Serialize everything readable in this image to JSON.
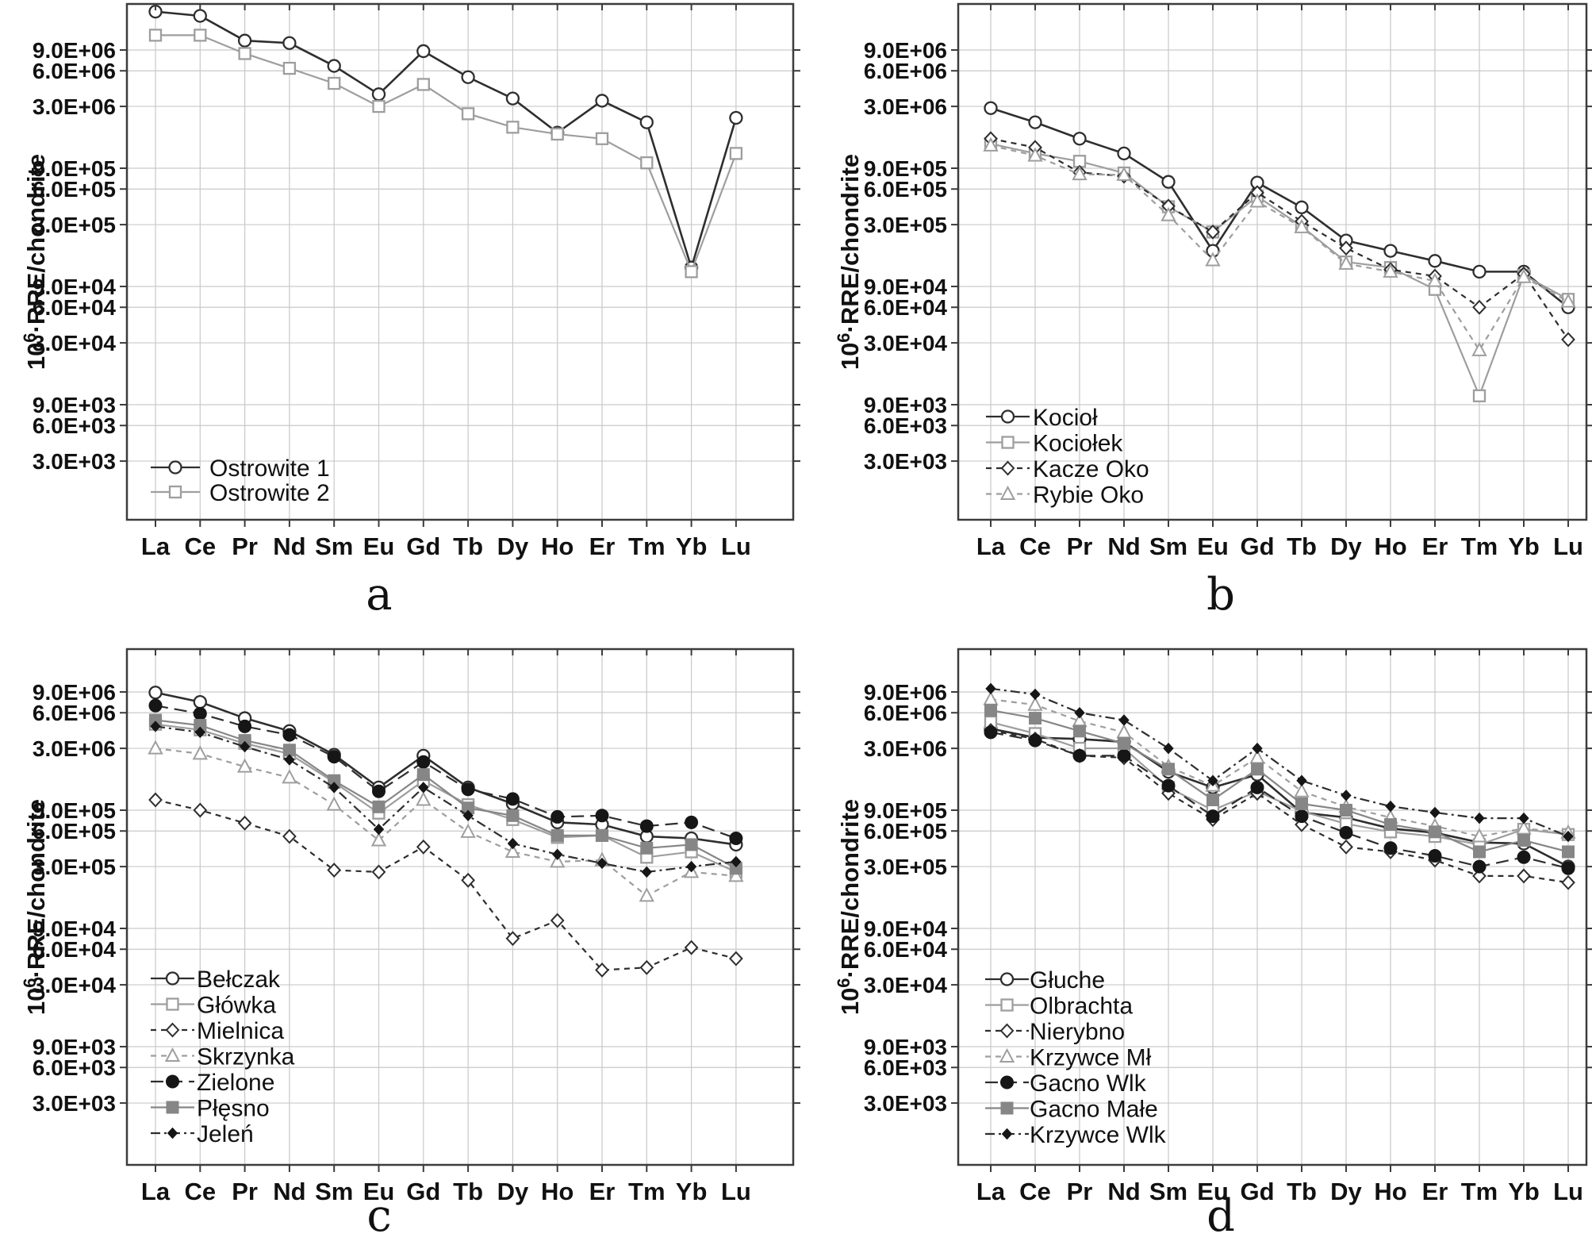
{
  "page": {
    "background": "#ffffff"
  },
  "colors": {
    "dark": "#2e2e2e",
    "gray": "#9e9e9e",
    "midgray": "#868686",
    "grid": "#c9c9c9",
    "axis_box": "#3c3c3c",
    "text": "#111111"
  },
  "axis": {
    "ylabel": "10⁶·RRE/chondrite",
    "ylabel_base": "10",
    "ylabel_sup": "6",
    "ylabel_rest": "·RRE/chondrite",
    "yticks": [
      {
        "label": "9.0E+06",
        "value": 9000000
      },
      {
        "label": "6.0E+06",
        "value": 6000000
      },
      {
        "label": "3.0E+06",
        "value": 3000000
      },
      {
        "label": "9.0E+05",
        "value": 900000
      },
      {
        "label": "6.0E+05",
        "value": 600000
      },
      {
        "label": "3.0E+05",
        "value": 300000
      },
      {
        "label": "9.0E+04",
        "value": 90000
      },
      {
        "label": "6.0E+04",
        "value": 60000
      },
      {
        "label": "3.0E+04",
        "value": 30000
      },
      {
        "label": "9.0E+03",
        "value": 9000
      },
      {
        "label": "6.0E+03",
        "value": 6000
      },
      {
        "label": "3.0E+03",
        "value": 3000
      }
    ],
    "categories": [
      "La",
      "Ce",
      "Pr",
      "Nd",
      "Sm",
      "Eu",
      "Gd",
      "Tb",
      "Dy",
      "Ho",
      "Er",
      "Tm",
      "Yb",
      "Lu"
    ]
  },
  "chart_data": [
    {
      "type": "line",
      "label": "a",
      "x": [
        "La",
        "Ce",
        "Pr",
        "Nd",
        "Sm",
        "Eu",
        "Gd",
        "Tb",
        "Dy",
        "Ho",
        "Er",
        "Tm",
        "Yb",
        "Lu"
      ],
      "ylabel": "10⁶·RRE/chondrite",
      "yscale": "log",
      "ylim": [
        1000,
        22000000
      ],
      "grid": true,
      "legend_position": "lower-left",
      "series": [
        {
          "name": "Ostrowite 1",
          "color": "dark",
          "line": "solid",
          "marker": "circle-open",
          "values": [
            19000000.0,
            17500000.0,
            10800000.0,
            10300000.0,
            6600000.0,
            3800000.0,
            8800000.0,
            5300000.0,
            3500000.0,
            1800000.0,
            3350000.0,
            2200000.0,
            130000.0,
            2400000.0
          ]
        },
        {
          "name": "Ostrowite 2",
          "color": "gray",
          "line": "solid",
          "marker": "square-open",
          "values": [
            12000000.0,
            12000000.0,
            8400000.0,
            6300000.0,
            4700000.0,
            3000000.0,
            4600000.0,
            2600000.0,
            2000000.0,
            1750000.0,
            1600000.0,
            1000000.0,
            120000.0,
            1200000.0
          ]
        }
      ]
    },
    {
      "type": "line",
      "label": "b",
      "x": [
        "La",
        "Ce",
        "Pr",
        "Nd",
        "Sm",
        "Eu",
        "Gd",
        "Tb",
        "Dy",
        "Ho",
        "Er",
        "Tm",
        "Yb",
        "Lu"
      ],
      "ylabel": "10⁶·RRE/chondrite",
      "yscale": "log",
      "ylim": [
        1000,
        22000000
      ],
      "grid": true,
      "legend_position": "lower-left",
      "series": [
        {
          "name": "Kocioł",
          "color": "dark",
          "line": "solid",
          "marker": "circle-open",
          "values": [
            2900000.0,
            2200000.0,
            1600000.0,
            1200000.0,
            690000.0,
            180000.0,
            680000.0,
            420000.0,
            220000.0,
            180000.0,
            148000.0,
            120000.0,
            120000.0,
            60000.0
          ]
        },
        {
          "name": "Kociołek",
          "color": "gray",
          "line": "solid",
          "marker": "square-open",
          "values": [
            1450000.0,
            1200000.0,
            1030000.0,
            820000.0,
            425000.0,
            260000.0,
            520000.0,
            290000.0,
            145000.0,
            130000.0,
            85000.0,
            10700.0,
            112000.0,
            70000.0
          ]
        },
        {
          "name": "Kacze Oko",
          "color": "dark",
          "line": "dash",
          "marker": "diamond-open",
          "values": [
            1600000.0,
            1350000.0,
            830000.0,
            770000.0,
            430000.0,
            260000.0,
            560000.0,
            320000.0,
            190000.0,
            125000.0,
            110000.0,
            60000.0,
            115000.0,
            32000.0
          ]
        },
        {
          "name": "Rybie Oko",
          "color": "gray",
          "line": "dash",
          "marker": "triangle-open",
          "values": [
            1400000.0,
            1150000.0,
            800000.0,
            790000.0,
            360000.0,
            150000.0,
            470000.0,
            285000.0,
            140000.0,
            120000.0,
            100000.0,
            26000.0,
            108000.0,
            67000.0
          ]
        }
      ]
    },
    {
      "type": "line",
      "label": "c",
      "x": [
        "La",
        "Ce",
        "Pr",
        "Nd",
        "Sm",
        "Eu",
        "Gd",
        "Tb",
        "Dy",
        "Ho",
        "Er",
        "Tm",
        "Yb",
        "Lu"
      ],
      "ylabel": "10⁶·RRE/chondrite",
      "yscale": "log",
      "ylim": [
        1000,
        22000000
      ],
      "grid": true,
      "legend_position": "lower-left",
      "series": [
        {
          "name": "Bełczak",
          "color": "dark",
          "line": "solid",
          "marker": "circle-open",
          "values": [
            8900000.0,
            7400000.0,
            5400000.0,
            4200000.0,
            2650000.0,
            1400000.0,
            2600000.0,
            1400000.0,
            1020000.0,
            710000.0,
            680000.0,
            540000.0,
            520000.0,
            460000.0
          ]
        },
        {
          "name": "Główka",
          "color": "gray",
          "line": "solid",
          "marker": "square-open",
          "values": [
            4800000.0,
            4300000.0,
            3300000.0,
            2700000.0,
            1550000.0,
            850000.0,
            1600000.0,
            1000000.0,
            750000.0,
            530000.0,
            550000.0,
            360000.0,
            400000.0,
            270000.0
          ]
        },
        {
          "name": "Mielnica",
          "color": "dark",
          "line": "dash",
          "marker": "diamond-open",
          "values": [
            1100000.0,
            900000.0,
            700000.0,
            540000.0,
            280000.0,
            270000.0,
            440000.0,
            230000.0,
            74000.0,
            105000.0,
            40000.0,
            42000.0,
            62000.0,
            50000.0
          ]
        },
        {
          "name": "Skrzynka",
          "color": "gray",
          "line": "dash",
          "marker": "triangle-open",
          "values": [
            3000000.0,
            2700000.0,
            2100000.0,
            1700000.0,
            1000000.0,
            500000.0,
            1100000.0,
            590000.0,
            400000.0,
            330000.0,
            340000.0,
            170000.0,
            270000.0,
            250000.0
          ]
        },
        {
          "name": "Zielone",
          "color": "dark",
          "line": "longdash",
          "marker": "circle-filled",
          "values": [
            6900000.0,
            5900000.0,
            4600000.0,
            3900000.0,
            2550000.0,
            1300000.0,
            2300000.0,
            1350000.0,
            1120000.0,
            790000.0,
            810000.0,
            660000.0,
            710000.0,
            520000.0
          ]
        },
        {
          "name": "Płęsno",
          "color": "midgray",
          "line": "solid",
          "marker": "square-filled",
          "values": [
            5200000.0,
            4700000.0,
            3500000.0,
            2900000.0,
            1600000.0,
            960000.0,
            1800000.0,
            940000.0,
            810000.0,
            550000.0,
            550000.0,
            430000.0,
            460000.0,
            290000.0
          ]
        },
        {
          "name": "Jeleń",
          "color": "dark",
          "line": "dashdot",
          "marker": "diamond-filled",
          "values": [
            4600000.0,
            4100000.0,
            3100000.0,
            2400000.0,
            1400000.0,
            620000.0,
            1400000.0,
            810000.0,
            470000.0,
            380000.0,
            320000.0,
            270000.0,
            300000.0,
            330000.0
          ]
        }
      ]
    },
    {
      "type": "line",
      "label": "d",
      "x": [
        "La",
        "Ce",
        "Pr",
        "Nd",
        "Sm",
        "Eu",
        "Gd",
        "Tb",
        "Dy",
        "Ho",
        "Er",
        "Tm",
        "Yb",
        "Lu"
      ],
      "ylabel": "10⁶·RRE/chondrite",
      "yscale": "log",
      "ylim": [
        1000,
        22000000
      ],
      "grid": true,
      "legend_position": "lower-left",
      "series": [
        {
          "name": "Głuche",
          "color": "dark",
          "line": "solid",
          "marker": "circle-open",
          "values": [
            4400000.0,
            3700000.0,
            3600000.0,
            3400000.0,
            1900000.0,
            1400000.0,
            1800000.0,
            860000.0,
            780000.0,
            630000.0,
            580000.0,
            480000.0,
            470000.0,
            300000.0
          ]
        },
        {
          "name": "Olbrachta",
          "color": "gray",
          "line": "solid",
          "marker": "square-open",
          "values": [
            5000000.0,
            4000000.0,
            3000000.0,
            3000000.0,
            1400000.0,
            900000.0,
            1300000.0,
            880000.0,
            690000.0,
            590000.0,
            540000.0,
            460000.0,
            620000.0,
            560000.0
          ]
        },
        {
          "name": "Nierybno",
          "color": "dark",
          "line": "dash",
          "marker": "diamond-open",
          "values": [
            4250000.0,
            3600000.0,
            2600000.0,
            2500000.0,
            1250000.0,
            750000.0,
            1250000.0,
            680000.0,
            440000.0,
            400000.0,
            340000.0,
            250000.0,
            250000.0,
            220000.0
          ]
        },
        {
          "name": "Krzywce Mł",
          "color": "gray",
          "line": "dash",
          "marker": "triangle-open",
          "values": [
            7800000.0,
            7000000.0,
            5100000.0,
            4100000.0,
            2100000.0,
            1450000.0,
            2500000.0,
            1300000.0,
            960000.0,
            780000.0,
            660000.0,
            540000.0,
            630000.0,
            580000.0
          ]
        },
        {
          "name": "Gacno Wlk",
          "color": "dark",
          "line": "longdash",
          "marker": "circle-filled",
          "values": [
            4100000.0,
            3500000.0,
            2600000.0,
            2600000.0,
            1450000.0,
            800000.0,
            1400000.0,
            800000.0,
            580000.0,
            430000.0,
            370000.0,
            300000.0,
            360000.0,
            290000.0
          ]
        },
        {
          "name": "Gacno Małe",
          "color": "midgray",
          "line": "solid",
          "marker": "square-filled",
          "values": [
            6300000.0,
            5400000.0,
            4200000.0,
            3300000.0,
            2000000.0,
            1100000.0,
            2000000.0,
            1020000.0,
            900000.0,
            680000.0,
            590000.0,
            400000.0,
            500000.0,
            400000.0
          ]
        },
        {
          "name": "Krzywce Wlk",
          "color": "dark",
          "line": "dashdot",
          "marker": "diamond-filled",
          "values": [
            9600000.0,
            8600000.0,
            6000000.0,
            5200000.0,
            3000000.0,
            1600000.0,
            3000000.0,
            1600000.0,
            1200000.0,
            970000.0,
            860000.0,
            770000.0,
            770000.0,
            540000.0
          ]
        }
      ]
    }
  ]
}
